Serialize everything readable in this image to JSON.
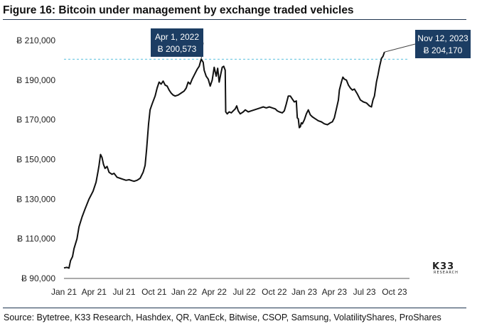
{
  "page": {
    "title": "Figure 16: Bitcoin under management by exchange traded vehicles",
    "source": "Source: Bytetree, K33 Research, Hashdex, QR, VanEck, Bitwise, CSOP, Samsung, VolatilityShares, ProShares",
    "logo": {
      "main": "K33",
      "sub": "RESEARCH"
    }
  },
  "chart_data": {
    "type": "line",
    "title": "Figure 16: Bitcoin under management by exchange traded vehicles",
    "xlabel": "",
    "ylabel": "",
    "ylim": [
      90000,
      210000
    ],
    "yticks": [
      90000,
      110000,
      130000,
      150000,
      170000,
      190000,
      210000
    ],
    "ytick_labels": [
      "Ƀ 90,000",
      "Ƀ 110,000",
      "Ƀ 130,000",
      "Ƀ 150,000",
      "Ƀ 170,000",
      "Ƀ 190,000",
      "Ƀ 210,000"
    ],
    "xlim_months": [
      0,
      34.5
    ],
    "xtick_labels": [
      "Jan 21",
      "Apr 21",
      "Jul 21",
      "Oct 21",
      "Jan 22",
      "Apr 22",
      "Jul 22",
      "Oct 22",
      "Jan 23",
      "Apr 23",
      "Jul 23",
      "Oct 23"
    ],
    "xtick_months": [
      0,
      3,
      6,
      9,
      12,
      15,
      18,
      21,
      24,
      27,
      30,
      33
    ],
    "series": [
      {
        "name": "Bitcoin under management",
        "color": "#111111",
        "points": [
          [
            0.0,
            95300
          ],
          [
            0.3,
            95600
          ],
          [
            0.5,
            95200
          ],
          [
            0.65,
            99000
          ],
          [
            0.85,
            101000
          ],
          [
            1.0,
            105000
          ],
          [
            1.3,
            110000
          ],
          [
            1.5,
            116000
          ],
          [
            1.8,
            121000
          ],
          [
            2.1,
            125000
          ],
          [
            2.5,
            130000
          ],
          [
            2.9,
            134000
          ],
          [
            3.2,
            138500
          ],
          [
            3.4,
            144000
          ],
          [
            3.5,
            147000
          ],
          [
            3.65,
            152500
          ],
          [
            3.8,
            151000
          ],
          [
            3.95,
            147500
          ],
          [
            4.1,
            145500
          ],
          [
            4.3,
            146500
          ],
          [
            4.5,
            143500
          ],
          [
            4.8,
            142500
          ],
          [
            5.0,
            143000
          ],
          [
            5.3,
            141000
          ],
          [
            5.6,
            140500
          ],
          [
            5.9,
            140000
          ],
          [
            6.2,
            139500
          ],
          [
            6.5,
            139800
          ],
          [
            6.8,
            139300
          ],
          [
            7.0,
            139000
          ],
          [
            7.3,
            139500
          ],
          [
            7.6,
            140500
          ],
          [
            7.9,
            143500
          ],
          [
            8.1,
            147000
          ],
          [
            8.25,
            155000
          ],
          [
            8.45,
            168000
          ],
          [
            8.6,
            175000
          ],
          [
            8.8,
            178000
          ],
          [
            9.1,
            182000
          ],
          [
            9.3,
            186000
          ],
          [
            9.5,
            189000
          ],
          [
            9.7,
            188000
          ],
          [
            9.9,
            189500
          ],
          [
            10.1,
            187500
          ],
          [
            10.3,
            187000
          ],
          [
            10.5,
            185000
          ],
          [
            10.7,
            183500
          ],
          [
            10.9,
            182500
          ],
          [
            11.1,
            182000
          ],
          [
            11.4,
            182500
          ],
          [
            11.7,
            183500
          ],
          [
            12.0,
            184500
          ],
          [
            12.2,
            186000
          ],
          [
            12.4,
            189000
          ],
          [
            12.6,
            188000
          ],
          [
            12.8,
            190500
          ],
          [
            13.0,
            192500
          ],
          [
            13.3,
            195500
          ],
          [
            13.5,
            197000
          ],
          [
            13.7,
            200573
          ],
          [
            13.9,
            199000
          ],
          [
            14.0,
            195000
          ],
          [
            14.2,
            192000
          ],
          [
            14.4,
            190500
          ],
          [
            14.6,
            187000
          ],
          [
            14.8,
            190000
          ],
          [
            15.0,
            196500
          ],
          [
            15.2,
            192000
          ],
          [
            15.35,
            196000
          ],
          [
            15.5,
            189000
          ],
          [
            15.65,
            193000
          ],
          [
            15.8,
            196500
          ],
          [
            15.95,
            197000
          ],
          [
            16.1,
            195000
          ],
          [
            16.15,
            174000
          ],
          [
            16.3,
            173000
          ],
          [
            16.5,
            174000
          ],
          [
            16.7,
            173500
          ],
          [
            16.9,
            174500
          ],
          [
            17.1,
            175500
          ],
          [
            17.25,
            177000
          ],
          [
            17.4,
            174500
          ],
          [
            17.6,
            173000
          ],
          [
            17.9,
            174000
          ],
          [
            18.1,
            175000
          ],
          [
            18.4,
            174000
          ],
          [
            18.7,
            174500
          ],
          [
            19.0,
            175000
          ],
          [
            19.3,
            175500
          ],
          [
            19.6,
            176000
          ],
          [
            19.9,
            176500
          ],
          [
            20.2,
            176000
          ],
          [
            20.5,
            176500
          ],
          [
            20.8,
            176000
          ],
          [
            21.1,
            175500
          ],
          [
            21.3,
            174500
          ],
          [
            21.5,
            174000
          ],
          [
            21.8,
            173500
          ],
          [
            22.0,
            174500
          ],
          [
            22.2,
            178000
          ],
          [
            22.4,
            182000
          ],
          [
            22.6,
            182000
          ],
          [
            22.8,
            180500
          ],
          [
            23.0,
            179000
          ],
          [
            23.2,
            179500
          ],
          [
            23.3,
            171000
          ],
          [
            23.4,
            170500
          ],
          [
            23.5,
            166000
          ],
          [
            23.6,
            166500
          ],
          [
            23.7,
            168500
          ],
          [
            23.8,
            168000
          ],
          [
            24.0,
            170000
          ],
          [
            24.2,
            173000
          ],
          [
            24.4,
            175000
          ],
          [
            24.6,
            172500
          ],
          [
            24.8,
            171500
          ],
          [
            25.1,
            170500
          ],
          [
            25.4,
            169500
          ],
          [
            25.7,
            169000
          ],
          [
            26.0,
            168000
          ],
          [
            26.3,
            167500
          ],
          [
            26.6,
            168500
          ],
          [
            26.8,
            169000
          ],
          [
            27.0,
            171000
          ],
          [
            27.2,
            175500
          ],
          [
            27.4,
            180000
          ],
          [
            27.5,
            185000
          ],
          [
            27.7,
            189000
          ],
          [
            27.85,
            191500
          ],
          [
            28.0,
            190500
          ],
          [
            28.2,
            190000
          ],
          [
            28.4,
            187500
          ],
          [
            28.6,
            186000
          ],
          [
            28.8,
            185000
          ],
          [
            29.0,
            185500
          ],
          [
            29.3,
            183000
          ],
          [
            29.6,
            180000
          ],
          [
            29.9,
            179000
          ],
          [
            30.2,
            178500
          ],
          [
            30.5,
            177000
          ],
          [
            30.7,
            176500
          ],
          [
            30.85,
            180000
          ],
          [
            31.0,
            182000
          ],
          [
            31.2,
            189000
          ],
          [
            31.35,
            192500
          ],
          [
            31.5,
            196500
          ],
          [
            31.7,
            201000
          ],
          [
            31.85,
            202000
          ],
          [
            32.0,
            204170
          ]
        ]
      }
    ],
    "reference_line": {
      "value": 200573,
      "style": "dashed",
      "color": "#5bc0de"
    },
    "annotations": [
      {
        "date": "Apr 1, 2022",
        "value_label": "Ƀ 200,573",
        "x_month": 13.7,
        "value": 200573
      },
      {
        "date": "Nov 12, 2023",
        "value_label": "Ƀ 204,170",
        "x_month": 32.0,
        "value": 204170
      }
    ]
  }
}
